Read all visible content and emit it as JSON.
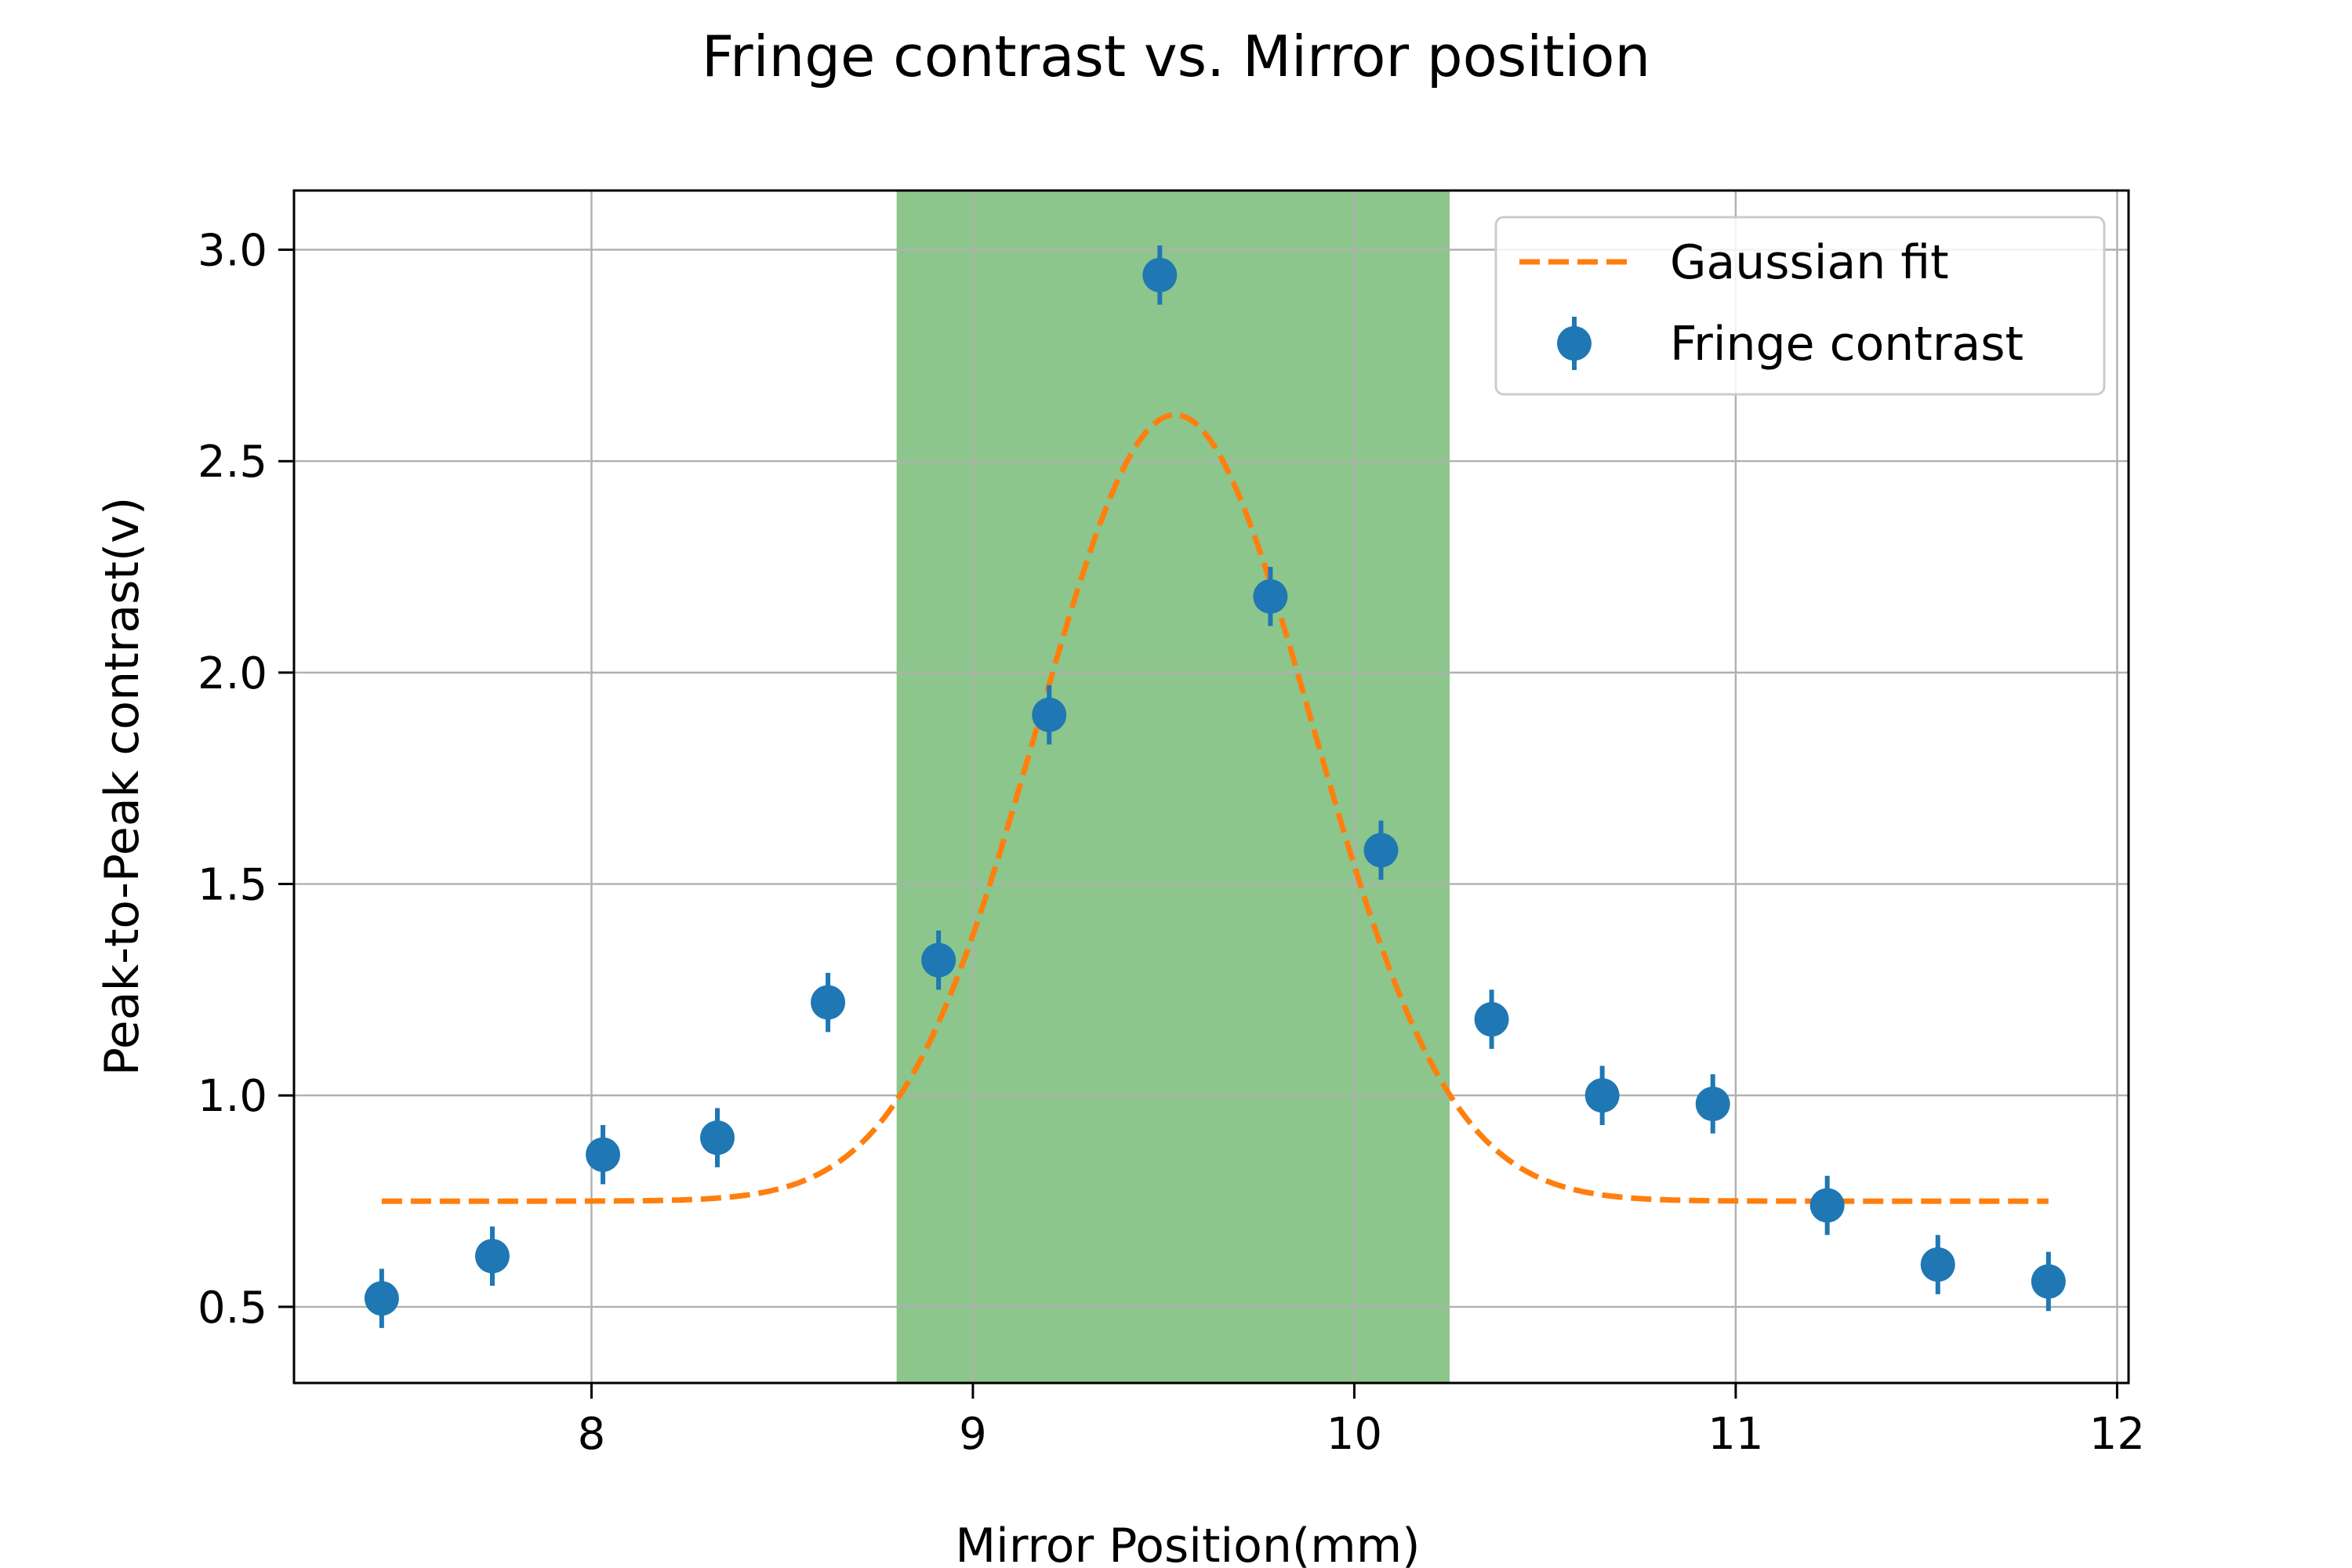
{
  "chart_data": {
    "type": "scatter",
    "title": "Fringe contrast vs. Mirror position",
    "xlabel": "Mirror Position(mm)",
    "ylabel": "Peak-to-Peak contrast(v)",
    "xlim": [
      7.22,
      12.03
    ],
    "ylim": [
      0.32,
      3.14
    ],
    "xticks": [
      8,
      9,
      10,
      11,
      12
    ],
    "yticks": [
      0.5,
      1.0,
      1.5,
      2.0,
      2.5,
      3.0
    ],
    "xtick_labels": [
      "8",
      "9",
      "10",
      "11",
      "12"
    ],
    "ytick_labels": [
      "0.5",
      "1.0",
      "1.5",
      "2.0",
      "2.5",
      "3.0"
    ],
    "grid": true,
    "legend_position": "top-right",
    "shaded_band": {
      "x_start": 8.8,
      "x_end": 10.25,
      "color": "#8cc68c"
    },
    "series": [
      {
        "name": "Gaussian fit",
        "kind": "line",
        "style": "dashed",
        "color": "#ff7f0e",
        "model": {
          "baseline": 0.75,
          "amplitude": 1.86,
          "center": 9.53,
          "sigma": 0.36
        },
        "x_range": [
          7.45,
          11.82
        ]
      },
      {
        "name": "Fringe contrast",
        "kind": "errorbar",
        "color": "#1f77b4",
        "yerr": 0.07,
        "x": [
          7.45,
          7.74,
          8.03,
          8.33,
          8.62,
          8.91,
          9.2,
          9.49,
          9.78,
          10.07,
          10.36,
          10.65,
          10.94,
          11.24,
          11.53,
          11.82
        ],
        "y": [
          0.52,
          0.62,
          0.86,
          0.9,
          1.22,
          1.32,
          1.9,
          2.94,
          2.18,
          1.58,
          1.18,
          1.0,
          0.98,
          0.74,
          0.6,
          0.56
        ]
      }
    ]
  }
}
